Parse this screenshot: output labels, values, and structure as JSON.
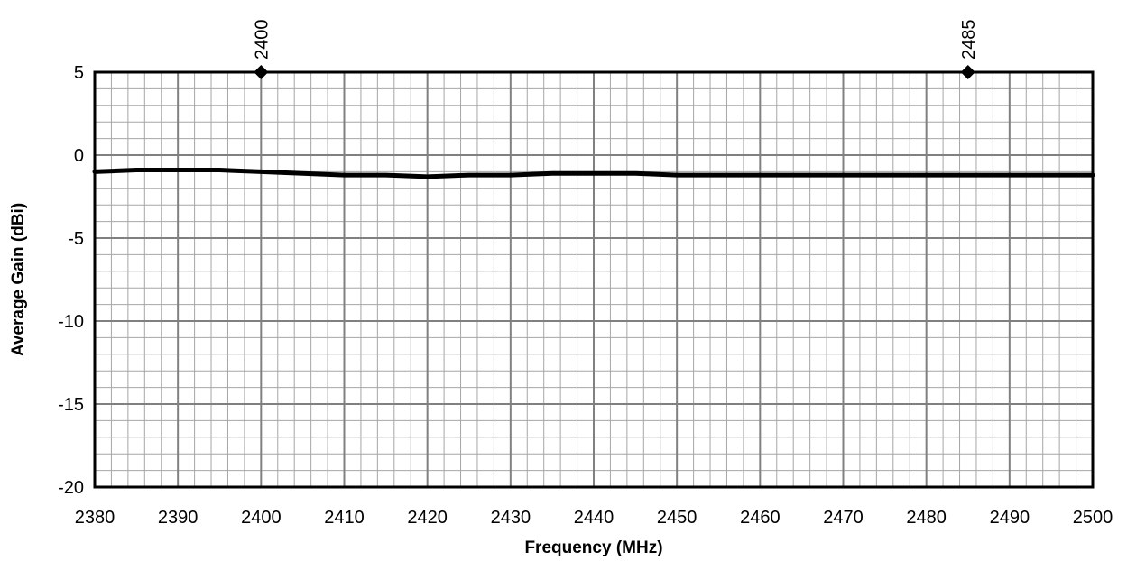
{
  "chart_data": {
    "type": "line",
    "title": "",
    "xlabel": "Frequency (MHz)",
    "ylabel": "Average Gain (dBi)",
    "xlim": [
      2380,
      2500
    ],
    "ylim": [
      -20,
      5
    ],
    "x_ticks": [
      2380,
      2390,
      2400,
      2410,
      2420,
      2430,
      2440,
      2450,
      2460,
      2470,
      2480,
      2490,
      2500
    ],
    "y_ticks": [
      5,
      0,
      -5,
      -10,
      -15,
      -20
    ],
    "grid": true,
    "series": [
      {
        "color": "#000000",
        "x": [
          2380,
          2385,
          2390,
          2395,
          2400,
          2405,
          2410,
          2415,
          2420,
          2425,
          2430,
          2435,
          2440,
          2445,
          2450,
          2455,
          2460,
          2465,
          2470,
          2475,
          2480,
          2485,
          2490,
          2495,
          2500
        ],
        "y": [
          -1.0,
          -0.9,
          -0.9,
          -0.9,
          -1.0,
          -1.1,
          -1.2,
          -1.2,
          -1.3,
          -1.2,
          -1.2,
          -1.1,
          -1.1,
          -1.1,
          -1.2,
          -1.2,
          -1.2,
          -1.2,
          -1.2,
          -1.2,
          -1.2,
          -1.2,
          -1.2,
          -1.2,
          -1.2
        ]
      }
    ],
    "markers": [
      {
        "label": "2400",
        "x": 2400,
        "y": 5,
        "shape": "diamond"
      },
      {
        "label": "2485",
        "x": 2485,
        "y": 5,
        "shape": "diamond"
      }
    ]
  }
}
